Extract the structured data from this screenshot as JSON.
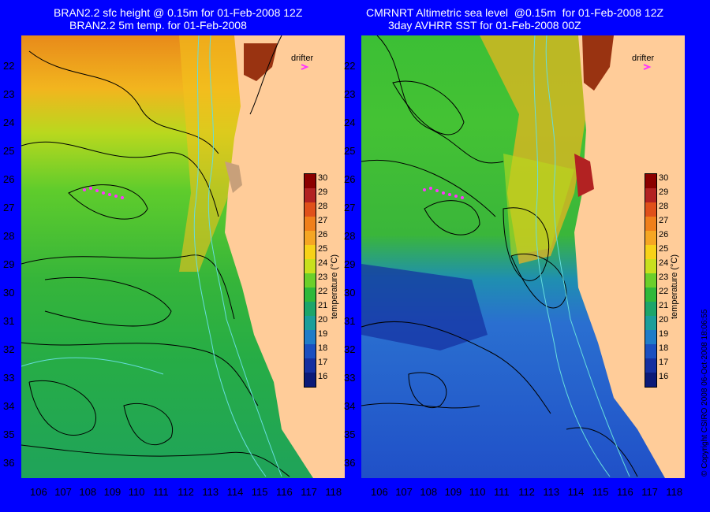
{
  "left_panel": {
    "title_line1": "BRAN2.2 sfc height @ 0.15m for 01-Feb-2008 12Z",
    "title_line2": "BRAN2.2 5m temp. for 01-Feb-2008",
    "drifter_label": "drifter"
  },
  "right_panel": {
    "title_line1": "CMRNRT Altimetric sea level  @0.15m  for 01-Feb-2008 12Z",
    "title_line2": "3day AVHRR SST for 01-Feb-2008 00Z",
    "drifter_label": "drifter"
  },
  "y_axis_labels": [
    "22",
    "23",
    "24",
    "25",
    "26",
    "27",
    "28",
    "29",
    "30",
    "31",
    "32",
    "33",
    "34",
    "35",
    "36"
  ],
  "x_axis_labels": [
    "106",
    "107",
    "108",
    "109",
    "110",
    "111",
    "112",
    "113",
    "114",
    "115",
    "116",
    "117",
    "118"
  ],
  "colorbar": {
    "title": "temperature (°C)",
    "ticks": [
      "30",
      "29",
      "28",
      "27",
      "26",
      "25",
      "24",
      "23",
      "22",
      "21",
      "20",
      "19",
      "18",
      "17",
      "16"
    ],
    "colors": [
      "#8b0000",
      "#b22222",
      "#e0501a",
      "#f07f1a",
      "#f5a623",
      "#f7d218",
      "#c8e01e",
      "#6ccf2a",
      "#2fb83a",
      "#1ca56a",
      "#1a9e9a",
      "#1f7cc8",
      "#1a4fc0",
      "#142fa0",
      "#0b1a78"
    ]
  },
  "copyright": "© Copyright CSIRO 2008    06-Oct-2008 18:06:55",
  "colors": {
    "background": "#0000ff",
    "land": "#ffcc99",
    "contour": "#000000",
    "bathymetry": "#66dddd",
    "drifter_track": "#ff33ff"
  }
}
